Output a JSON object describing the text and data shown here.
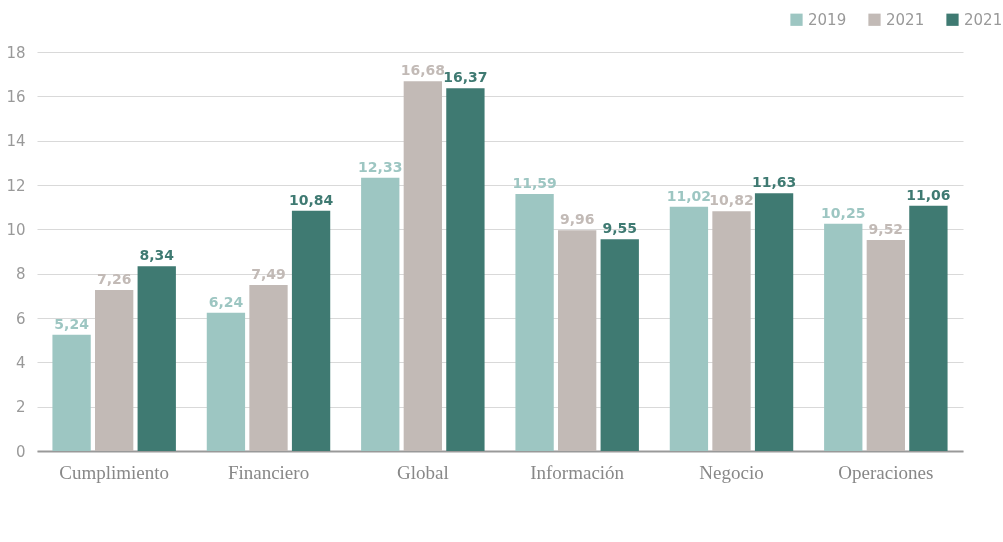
{
  "chart_data": {
    "type": "bar",
    "categories": [
      "Cumplimiento",
      "Financiero",
      "Global",
      "Información",
      "Negocio",
      "Operaciones"
    ],
    "series": [
      {
        "name": "2019",
        "color": "#9dc6c2",
        "values": [
          5.24,
          6.24,
          12.33,
          11.59,
          11.02,
          10.25
        ],
        "value_labels": [
          "5,24",
          "6,24",
          "12,33",
          "11,59",
          "11,02",
          "10,25"
        ]
      },
      {
        "name": "2021",
        "color": "#c2bab6",
        "values": [
          7.26,
          7.49,
          16.68,
          9.96,
          10.82,
          9.52
        ],
        "value_labels": [
          "7,26",
          "7,49",
          "16,68",
          "9,96",
          "10,82",
          "9,52"
        ]
      },
      {
        "name": "2021",
        "color": "#3f7a72",
        "values": [
          8.34,
          10.84,
          16.37,
          9.55,
          11.63,
          11.06
        ],
        "value_labels": [
          "8,34",
          "10,84",
          "16,37",
          "9,55",
          "11,63",
          "11,06"
        ]
      }
    ],
    "ylim": [
      0,
      18
    ],
    "yticks": [
      0,
      2,
      4,
      6,
      8,
      10,
      12,
      14,
      16,
      18
    ],
    "grid": "y",
    "legend": "top right"
  }
}
